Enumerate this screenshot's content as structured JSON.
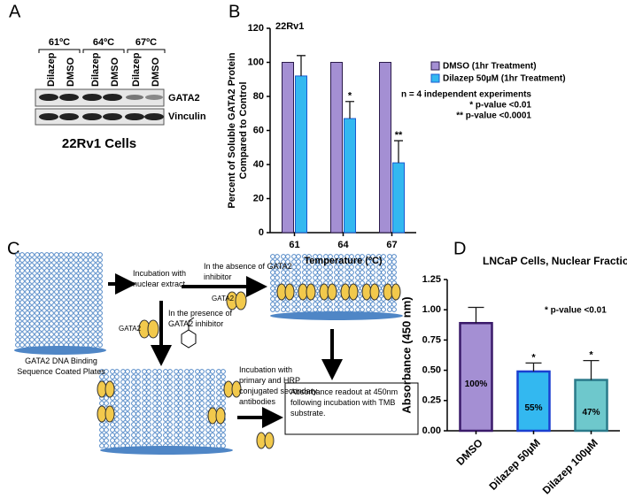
{
  "panel_a": {
    "label": "A",
    "temperatures": [
      "61ºC",
      "64ºC",
      "67ºC"
    ],
    "lanes": [
      "Dilazep",
      "DMSO",
      "Dilazep",
      "DMSO",
      "Dilazep",
      "DMSO"
    ],
    "bands": [
      "GATA2",
      "Vinculin"
    ],
    "caption": "22Rv1 Cells"
  },
  "panel_c": {
    "label": "C",
    "plate_label": "GATA2 DNA Binding Sequence Coated Plates",
    "step_incubation": "Incubation with nuclear extract",
    "absence": "In the absence of GATA2 inhibitor",
    "absence_protein": "GATA2",
    "presence": "In the presence of GATA2 inhibitor",
    "presence_protein": "GATA2",
    "antibodies": "Incubation with primary and HRP conjugated secondary antibodies",
    "readout": "Absorbance readout at 450nm following incubation with TMB substrate."
  },
  "chart_data": [
    {
      "panel_label": "B",
      "type": "bar",
      "title": "22Rv1",
      "ylabel": [
        "Percent of Soluble GATA2 Protein",
        "Compared to Control"
      ],
      "xlabel": "Temperature (ºC)",
      "categories": [
        "61",
        "64",
        "67"
      ],
      "series": [
        {
          "name": "DMSO (1hr Treatment)",
          "color": "#a48fd3",
          "edge_color": "#2a1a4a",
          "values": [
            100,
            100,
            100
          ]
        },
        {
          "name": "Dilazep 50µM (1hr Treatment)",
          "color": "#33b8f0",
          "edge_color": "#1a5ad0",
          "values": [
            92,
            67,
            41
          ],
          "errors": [
            12,
            10,
            13
          ],
          "significance": [
            null,
            "*",
            "**"
          ]
        }
      ],
      "ylim": [
        0,
        120
      ],
      "yticks": [
        0,
        20,
        40,
        60,
        80,
        100,
        120
      ],
      "annotations": [
        "n = 4 independent experiments",
        "* p-value <0.01",
        "** p-value <0.0001"
      ],
      "legend": "right"
    },
    {
      "panel_label": "D",
      "type": "bar",
      "title": "LNCaP Cells, Nuclear Fraction",
      "ylabel": "Absorbance (450 nm)",
      "categories": [
        "DMSO",
        "Dilazep 50µM",
        "Dilazep 100µM"
      ],
      "values": [
        0.89,
        0.49,
        0.42
      ],
      "errors": [
        0.13,
        0.07,
        0.16
      ],
      "colors": [
        "#a48fd3",
        "#33b8f0",
        "#6ec8cc"
      ],
      "edge_colors": [
        "#3a1a6a",
        "#1a3fd0",
        "#2a7a8a"
      ],
      "bar_labels": [
        "100%",
        "55%",
        "47%"
      ],
      "significance": [
        null,
        "*",
        "*"
      ],
      "ylim": [
        0,
        1.25
      ],
      "yticks": [
        {
          "value": 0,
          "label": "0.00"
        },
        {
          "value": 0.25,
          "label": "0.25"
        },
        {
          "value": 0.5,
          "label": "0.50"
        },
        {
          "value": 0.75,
          "label": "0.75"
        },
        {
          "value": 1,
          "label": "1.00"
        },
        {
          "value": 1.25,
          "label": "1.25"
        }
      ],
      "annotations": [
        "* p-value <0.01"
      ]
    }
  ]
}
